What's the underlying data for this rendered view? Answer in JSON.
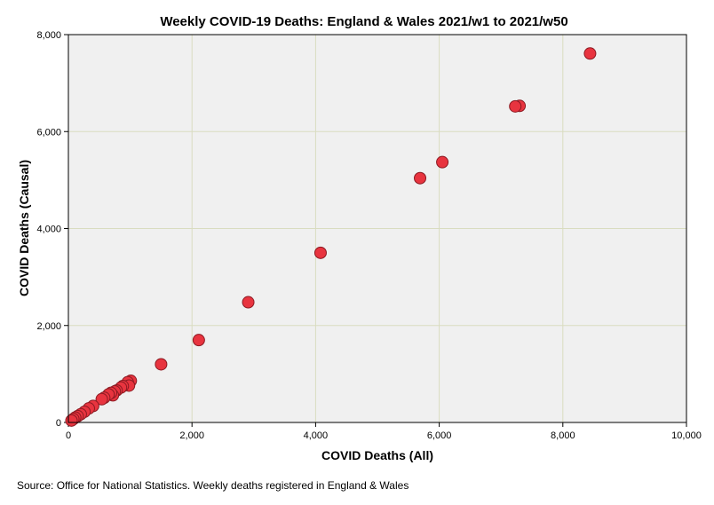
{
  "chart_data": {
    "type": "scatter",
    "title": "Weekly COVID-19 Deaths: England & Wales 2021/w1 to 2021/w50",
    "xlabel": "COVID Deaths (All)",
    "ylabel": "COVID Deaths (Causal)",
    "xlim": [
      0,
      10000
    ],
    "ylim": [
      0,
      8000
    ],
    "xticks": [
      0,
      2000,
      4000,
      6000,
      8000,
      10000
    ],
    "yticks": [
      0,
      2000,
      4000,
      6000,
      8000
    ],
    "xtick_labels": [
      "0",
      "2,000",
      "4,000",
      "6,000",
      "8,000",
      "10,000"
    ],
    "ytick_labels": [
      "0",
      "2,000",
      "4,000",
      "6,000",
      "8,000"
    ],
    "grid": true,
    "marker_color": "#e8343f",
    "marker_edge_color": "#8b1a22",
    "plot_background": "#f0f0f0",
    "grid_color": "#d9dcc0",
    "points": [
      {
        "x": 8440,
        "y": 7610
      },
      {
        "x": 7300,
        "y": 6530
      },
      {
        "x": 7230,
        "y": 6520
      },
      {
        "x": 6050,
        "y": 5370
      },
      {
        "x": 5690,
        "y": 5040
      },
      {
        "x": 4080,
        "y": 3500
      },
      {
        "x": 2910,
        "y": 2480
      },
      {
        "x": 2110,
        "y": 1700
      },
      {
        "x": 1500,
        "y": 1200
      },
      {
        "x": 1010,
        "y": 860
      },
      {
        "x": 960,
        "y": 830
      },
      {
        "x": 980,
        "y": 760
      },
      {
        "x": 880,
        "y": 750
      },
      {
        "x": 850,
        "y": 720
      },
      {
        "x": 780,
        "y": 660
      },
      {
        "x": 750,
        "y": 640
      },
      {
        "x": 720,
        "y": 560
      },
      {
        "x": 690,
        "y": 610
      },
      {
        "x": 650,
        "y": 580
      },
      {
        "x": 580,
        "y": 510
      },
      {
        "x": 540,
        "y": 480
      },
      {
        "x": 400,
        "y": 340
      },
      {
        "x": 330,
        "y": 290
      },
      {
        "x": 260,
        "y": 220
      },
      {
        "x": 200,
        "y": 170
      },
      {
        "x": 150,
        "y": 130
      },
      {
        "x": 110,
        "y": 100
      },
      {
        "x": 80,
        "y": 70
      },
      {
        "x": 50,
        "y": 40
      }
    ]
  },
  "source_note": "Source: Office for National Statistics. Weekly deaths registered in England & Wales"
}
